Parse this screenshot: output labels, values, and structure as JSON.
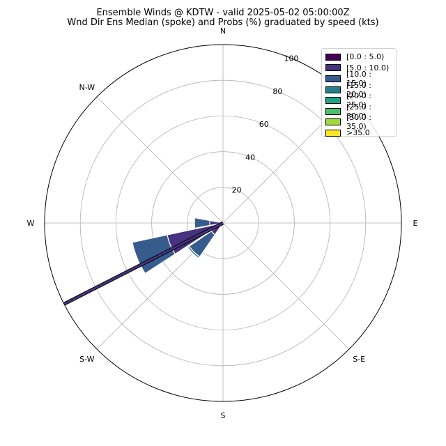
{
  "title_line1": "Ensemble Winds @ KDTW - valid 2025-05-02 05:00:00Z",
  "title_line2": "Wnd Dir Ens Median (spoke) and Probs (%) graduated by speed (kts)",
  "chart_data": {
    "type": "windrose",
    "title": "Ensemble Winds @ KDTW - valid 2025-05-02 05:00:00Z",
    "subtitle": "Wnd Dir Ens Median (spoke) and Probs (%) graduated by speed (kts)",
    "direction_labels": [
      "N",
      "N-W",
      "W",
      "S-W",
      "S",
      "S-E",
      "E"
    ],
    "radial_ticks": [
      "20",
      "40",
      "60",
      "80",
      "100"
    ],
    "rmax": 100,
    "grid": true,
    "legend_position": "top-right",
    "speed_bins": [
      {
        "label": "[0.0 : 5.0)",
        "color": "#440154"
      },
      {
        "label": "[5.0 : 10.0)",
        "color": "#46327e"
      },
      {
        "label": "[10.0 : 15.0)",
        "color": "#365c8d"
      },
      {
        "label": "[15.0 : 20.0)",
        "color": "#277f8e"
      },
      {
        "label": "[20.0 : 25.0)",
        "color": "#1fa187"
      },
      {
        "label": "[25.0 : 30.0)",
        "color": "#4ac16d"
      },
      {
        "label": "[30.0 : 35.0)",
        "color": "#a0da39"
      },
      {
        "label": ">35.0",
        "color": "#fde725"
      }
    ],
    "sectors": [
      {
        "direction_deg": 270,
        "segments": [
          0,
          7.5,
          8.5,
          0,
          0,
          0,
          0,
          0
        ]
      },
      {
        "direction_deg": 247.5,
        "segments": [
          0,
          32,
          20,
          0,
          0,
          0,
          0,
          0
        ]
      },
      {
        "direction_deg": 225,
        "segments": [
          0,
          8,
          15,
          1,
          0,
          0,
          0,
          0
        ]
      },
      {
        "direction_deg": 202.5,
        "segments": [
          0,
          2,
          0,
          0,
          0,
          0,
          0,
          0
        ]
      }
    ],
    "median_spoke": {
      "direction_deg": 243,
      "speed_bin": 1
    }
  }
}
